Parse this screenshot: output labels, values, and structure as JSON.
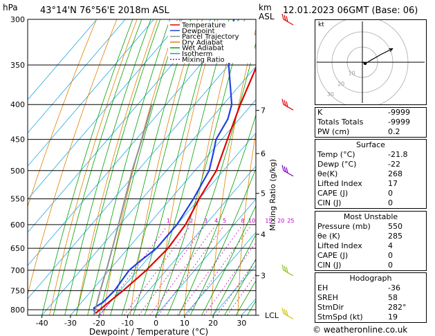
{
  "header": {
    "pressure_unit": "hPa",
    "location": "43°14'N  76°56'E  2018m  ASL",
    "height_unit": "km",
    "height_unit2": "ASL",
    "datetime": "12.01.2023  06GMT  (Base: 06)",
    "copyright": "© weatheronline.co.uk"
  },
  "chart_data": {
    "type": "line",
    "title": "",
    "xlabel": "Dewpoint / Temperature (°C)",
    "ylabel": "hPa",
    "right_label": "Mixing Ratio (g/kg)",
    "xlim": [
      -45,
      35
    ],
    "ylim": [
      815,
      300
    ],
    "log_pressure": true,
    "x_ticks": [
      -40,
      -30,
      -20,
      -10,
      0,
      10,
      20,
      30
    ],
    "pressure_ticks": [
      300,
      350,
      400,
      450,
      500,
      550,
      600,
      650,
      700,
      750,
      800
    ],
    "km_ticks": [
      {
        "label": "7",
        "p": 408
      },
      {
        "label": "6",
        "p": 472
      },
      {
        "label": "5",
        "p": 540
      },
      {
        "label": "4",
        "p": 620
      },
      {
        "label": "3",
        "p": 713
      },
      {
        "label": "LCL",
        "p": 815
      }
    ],
    "mixing_ratio_labels": [
      "1",
      "2",
      "3",
      "4",
      "5",
      "8",
      "10",
      "15",
      "20",
      "25"
    ],
    "mixing_ratio_values": [
      1,
      2,
      3,
      4,
      5,
      8,
      10,
      15,
      20,
      25
    ],
    "legend": {
      "placement": "top-left",
      "entries": [
        {
          "name": "Temperature",
          "color": "#e00000"
        },
        {
          "name": "Dewpoint",
          "color": "#2040e0"
        },
        {
          "name": "Parcel Trajectory",
          "color": "#909090"
        },
        {
          "name": "Dry Adiabat",
          "color": "#e08000"
        },
        {
          "name": "Wet Adiabat",
          "color": "#00a000"
        },
        {
          "name": "Isotherm",
          "color": "#00a0e0"
        },
        {
          "name": "Mixing Ratio",
          "color": "#c000c0"
        }
      ]
    },
    "series": [
      {
        "name": "Temperature",
        "color": "#e00000",
        "points": [
          [
            810,
            -21.8
          ],
          [
            780,
            -20.5
          ],
          [
            750,
            -19
          ],
          [
            700,
            -17
          ],
          [
            650,
            -16
          ],
          [
            600,
            -17
          ],
          [
            550,
            -20
          ],
          [
            500,
            -22.5
          ],
          [
            450,
            -28
          ],
          [
            400,
            -34
          ],
          [
            350,
            -40
          ],
          [
            300,
            -47
          ]
        ]
      },
      {
        "name": "Dewpoint",
        "color": "#2040e0",
        "points": [
          [
            810,
            -22
          ],
          [
            795,
            -24
          ],
          [
            780,
            -22.5
          ],
          [
            750,
            -22
          ],
          [
            700,
            -23
          ],
          [
            680,
            -22
          ],
          [
            650,
            -20
          ],
          [
            600,
            -20
          ],
          [
            550,
            -22
          ],
          [
            500,
            -25
          ],
          [
            470,
            -29
          ],
          [
            450,
            -32
          ],
          [
            420,
            -34
          ],
          [
            400,
            -37
          ],
          [
            350,
            -50
          ],
          [
            300,
            -62
          ]
        ]
      },
      {
        "name": "Parcel Trajectory",
        "color": "#909090",
        "points": [
          [
            815,
            -21.8
          ],
          [
            750,
            -27
          ],
          [
            700,
            -31
          ],
          [
            650,
            -35.5
          ],
          [
            600,
            -40.5
          ],
          [
            550,
            -46
          ],
          [
            500,
            -52
          ],
          [
            450,
            -58
          ],
          [
            400,
            -65
          ]
        ]
      }
    ]
  },
  "hodograph": {
    "unit": "kt",
    "ring_labels": [
      "10",
      "20",
      "30"
    ],
    "points": [
      [
        0,
        0
      ],
      [
        2,
        -1
      ],
      [
        5,
        1
      ],
      [
        12,
        5
      ],
      [
        20,
        9
      ]
    ]
  },
  "indices": [
    {
      "label": "K",
      "value": "-9999"
    },
    {
      "label": "Totals Totals",
      "value": "-9999"
    },
    {
      "label": "PW (cm)",
      "value": "0.2"
    }
  ],
  "surface": {
    "title": "Surface",
    "rows": [
      {
        "label": "Temp (°C)",
        "value": "-21.8"
      },
      {
        "label": "Dewp (°C)",
        "value": "-22"
      },
      {
        "label": "θe(K)",
        "value": "268"
      },
      {
        "label": "Lifted Index",
        "value": "17"
      },
      {
        "label": "CAPE (J)",
        "value": "0"
      },
      {
        "label": "CIN (J)",
        "value": "0"
      }
    ]
  },
  "most_unstable": {
    "title": "Most Unstable",
    "rows": [
      {
        "label": "Pressure (mb)",
        "value": "550"
      },
      {
        "label": "θe (K)",
        "value": "285"
      },
      {
        "label": "Lifted Index",
        "value": "4"
      },
      {
        "label": "CAPE (J)",
        "value": "0"
      },
      {
        "label": "CIN (J)",
        "value": "0"
      }
    ]
  },
  "hodograph_stats": {
    "title": "Hodograph",
    "rows": [
      {
        "label": "EH",
        "value": "-36"
      },
      {
        "label": "SREH",
        "value": "58"
      },
      {
        "label": "StmDir",
        "value": "282°"
      },
      {
        "label": "StmSpd (kt)",
        "value": "19"
      }
    ]
  },
  "wind_barbs": [
    {
      "p": 300,
      "color": "#e00000"
    },
    {
      "p": 400,
      "color": "#e00000"
    },
    {
      "p": 500,
      "color": "#8000c0"
    },
    {
      "p": 700,
      "color": "#90c020"
    },
    {
      "p": 810,
      "color": "#d0c000"
    }
  ]
}
